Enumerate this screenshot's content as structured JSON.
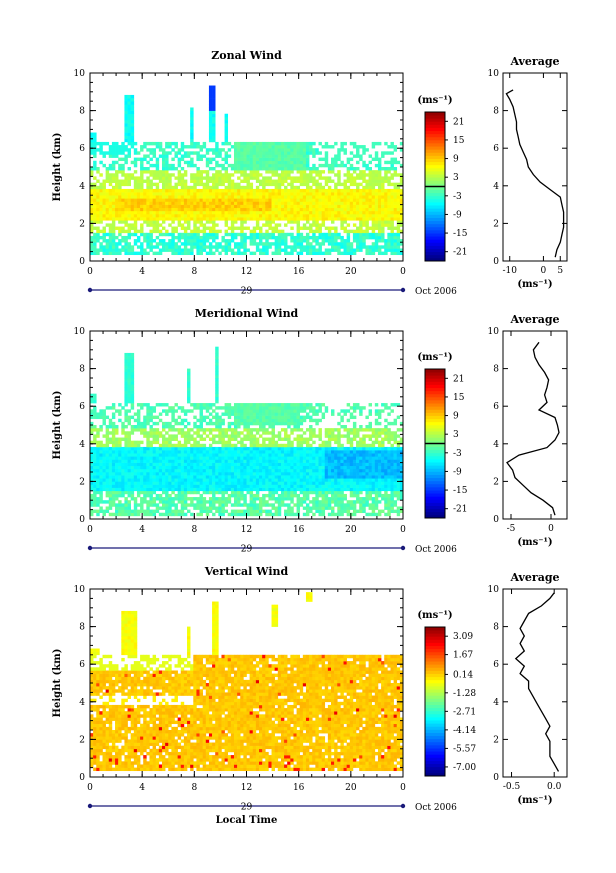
{
  "panels": [
    {
      "title": "Zonal Wind",
      "ylabel": "Height (km)",
      "cb_unit": "(ms⁻¹)",
      "cb_ticks": [
        "21",
        "15",
        "9",
        "3",
        "-3",
        "-9",
        "-15",
        "-21"
      ],
      "cb_range": [
        -24,
        24
      ],
      "avg_title": "Average",
      "avg_unit": "(ms⁻¹)",
      "avg_xticks": [
        "-10",
        "0",
        "5"
      ],
      "avg_xvals": [
        -10,
        0,
        5
      ],
      "avg_xrange": [
        -12,
        7
      ],
      "date_label": "Oct 2006"
    },
    {
      "title": "Meridional Wind",
      "ylabel": "Height (km)",
      "cb_unit": "(ms⁻¹)",
      "cb_ticks": [
        "21",
        "15",
        "9",
        "3",
        "-3",
        "-9",
        "-15",
        "-21"
      ],
      "cb_range": [
        -24,
        24
      ],
      "avg_title": "Average",
      "avg_unit": "(ms⁻¹)",
      "avg_xticks": [
        "-5",
        "0"
      ],
      "avg_xvals": [
        -5,
        0
      ],
      "avg_xrange": [
        -6,
        2
      ],
      "date_label": "Oct 2006"
    },
    {
      "title": "Vertical Wind",
      "ylabel": "Height (km)",
      "cb_unit": "(ms⁻¹)",
      "cb_ticks": [
        "3.09",
        "1.67",
        "0.14",
        "-1.28",
        "-2.71",
        "-4.14",
        "-5.57",
        "-7.00"
      ],
      "cb_range": [
        -7.7,
        3.8
      ],
      "avg_title": "Average",
      "avg_unit": "(ms⁻¹)",
      "avg_xticks": [
        "-0.5",
        "0.0"
      ],
      "avg_xvals": [
        -0.5,
        0.0
      ],
      "avg_xrange": [
        -0.6,
        0.15
      ],
      "date_label": "Oct 2006",
      "xlabel": "Local Time"
    }
  ],
  "chart_data": {
    "type": "heatmap",
    "x_ticks": [
      "0",
      "4",
      "8",
      "12",
      "16",
      "20",
      "0"
    ],
    "x_tick_values": [
      0,
      4,
      8,
      12,
      16,
      20,
      24
    ],
    "x_range": [
      0,
      24
    ],
    "day_label": "29",
    "y_ticks": [
      "0",
      "2",
      "4",
      "6",
      "8",
      "10"
    ],
    "y_range": [
      0,
      10
    ],
    "profiles": {
      "zonal": {
        "height": [
          0.2,
          0.6,
          1.0,
          1.4,
          1.8,
          2.2,
          2.6,
          3.0,
          3.4,
          3.8,
          4.2,
          4.6,
          5.0,
          5.4,
          5.8,
          6.2,
          6.6,
          7.0,
          7.4,
          7.8,
          8.2,
          8.6,
          8.9,
          9.1
        ],
        "wind": [
          3.5,
          4,
          5,
          5.5,
          6,
          6,
          6,
          5.5,
          5,
          2,
          -1,
          -3,
          -4.5,
          -5,
          -6,
          -7,
          -7.5,
          -8,
          -8,
          -8.5,
          -9,
          -10,
          -11,
          -9
        ]
      },
      "meridional": {
        "height": [
          0.2,
          0.6,
          1.0,
          1.4,
          1.8,
          2.2,
          2.6,
          3.0,
          3.4,
          3.8,
          4.2,
          4.6,
          5.0,
          5.4,
          5.8,
          6.2,
          6.6,
          7.0,
          7.4,
          7.8,
          8.2,
          8.6,
          9.0,
          9.4
        ],
        "wind": [
          0.5,
          0.2,
          -1,
          -2.5,
          -3.5,
          -4.5,
          -4.8,
          -5.5,
          -4,
          -0.5,
          0.5,
          1,
          0.8,
          0.5,
          -1.5,
          -0.5,
          -0.8,
          -0.5,
          -0.3,
          -0.8,
          -1.5,
          -2,
          -2.2,
          -1.5
        ]
      },
      "vertical": {
        "height": [
          0.3,
          0.7,
          1.1,
          1.5,
          1.9,
          2.3,
          2.7,
          3.1,
          3.5,
          3.9,
          4.3,
          4.7,
          5.1,
          5.5,
          5.9,
          6.3,
          6.7,
          7.1,
          7.5,
          7.9,
          8.3,
          8.7,
          9.1,
          9.5,
          9.8
        ],
        "wind": [
          0.05,
          0.0,
          -0.05,
          -0.05,
          -0.05,
          -0.1,
          -0.05,
          -0.1,
          -0.15,
          -0.2,
          -0.25,
          -0.3,
          -0.3,
          -0.4,
          -0.35,
          -0.45,
          -0.35,
          -0.4,
          -0.35,
          -0.4,
          -0.35,
          -0.3,
          -0.15,
          -0.05,
          0.0
        ]
      }
    }
  }
}
